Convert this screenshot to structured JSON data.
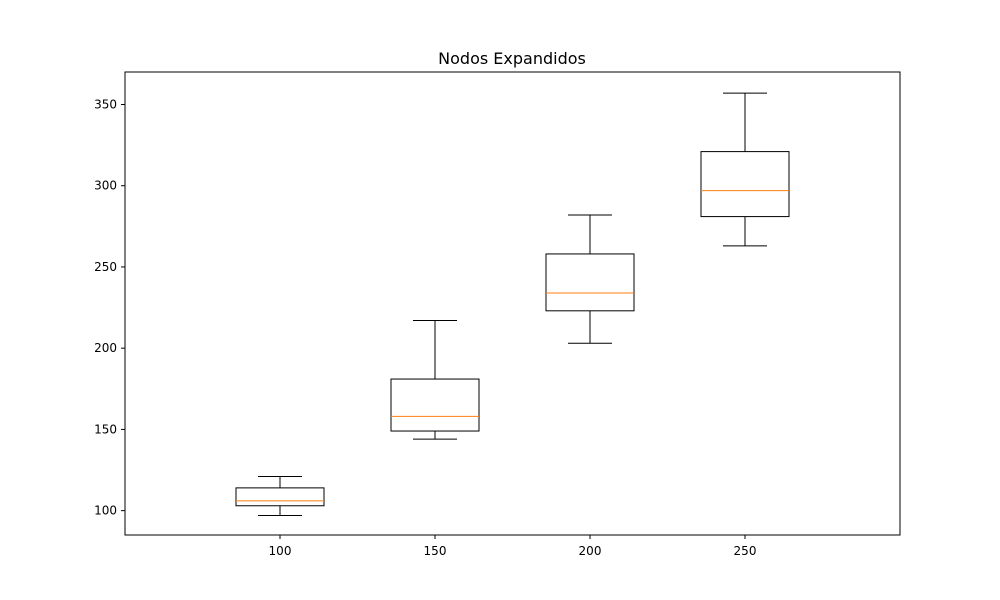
{
  "chart_data": {
    "type": "boxplot",
    "title": "Nodos Expandidos",
    "xlabel": "",
    "ylabel": "",
    "categories": [
      "100",
      "150",
      "200",
      "250"
    ],
    "boxes": [
      {
        "category": "100",
        "whisker_low": 97,
        "q1": 103,
        "median": 106,
        "q3": 114,
        "whisker_high": 121
      },
      {
        "category": "150",
        "whisker_low": 144,
        "q1": 149,
        "median": 158,
        "q3": 181,
        "whisker_high": 217
      },
      {
        "category": "200",
        "whisker_low": 203,
        "q1": 223,
        "median": 234,
        "q3": 258,
        "whisker_high": 282
      },
      {
        "category": "250",
        "whisker_low": 263,
        "q1": 281,
        "median": 297,
        "q3": 321,
        "whisker_high": 357
      }
    ],
    "yticks": [
      "100",
      "150",
      "200",
      "250",
      "300",
      "350"
    ],
    "ylim": [
      85,
      370
    ],
    "xlim": [
      50,
      300
    ],
    "grid": false,
    "legend": "none",
    "colors": {
      "box": "#000000",
      "median": "#ff7f0e",
      "whisker": "#000000"
    }
  }
}
